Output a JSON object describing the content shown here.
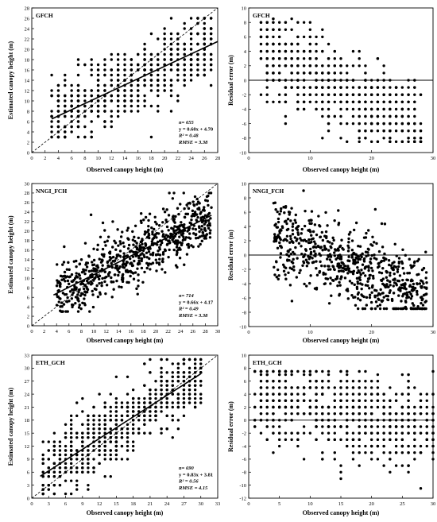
{
  "chart_data": [
    {
      "type": "scatter",
      "title": "GFCH",
      "xlabel": "Observed canopy height (m)",
      "ylabel": "Estimated canopy height (m)",
      "xlim": [
        0,
        28
      ],
      "ylim": [
        0,
        28
      ],
      "xticks": [
        "0",
        "2",
        "4",
        "6",
        "8",
        "10",
        "12",
        "14",
        "16",
        "18",
        "20",
        "22",
        "24",
        "26",
        "28"
      ],
      "yticks": [
        "0",
        "2",
        "4",
        "6",
        "8",
        "10",
        "12",
        "14",
        "16",
        "18",
        "20",
        "22",
        "24",
        "26",
        "28"
      ],
      "fit": {
        "slope": 0.6,
        "intercept": 4.7,
        "x_range": [
          3,
          28
        ]
      },
      "one_to_one": true,
      "stats": {
        "n": "n= 655",
        "eq": "y = 0.60x + 4.70",
        "r2": "R² = 0.48",
        "rmse": "RMSE = 3.38"
      },
      "gen": {
        "seed": 11,
        "count": 655,
        "xmin": 3,
        "xmax": 27.5,
        "ymin": 3,
        "ymax": 26,
        "sd": 3.3,
        "xstep": 1,
        "ystep": 1
      }
    },
    {
      "type": "scatter",
      "title": "GFCH",
      "xlabel": "Observed canopy height (m)",
      "ylabel": "Residual error (m)",
      "xlim": [
        0,
        30
      ],
      "ylim": [
        -10,
        10
      ],
      "xticks": [
        "0",
        "10",
        "20",
        "30"
      ],
      "yticks": [
        "-10",
        "-8",
        "-6",
        "-4",
        "-2",
        "0",
        "2",
        "4",
        "6",
        "8",
        "10"
      ],
      "zero_line": true,
      "gen": {
        "seed": 12,
        "count": 655,
        "xmin": 2,
        "xmax": 28,
        "ymin": -8.5,
        "ymax": 8.5,
        "residual": true,
        "slope": 0.6,
        "intercept": 4.7,
        "sd": 3.3,
        "xstep": 1,
        "ystep": 1
      }
    },
    {
      "type": "scatter",
      "title": "NNGI_FCH",
      "xlabel": "Observed canopy height (m)",
      "ylabel": "Estimated canopy height (m)",
      "xlim": [
        0,
        30
      ],
      "ylim": [
        0,
        30
      ],
      "xticks": [
        "0",
        "2",
        "4",
        "6",
        "8",
        "10",
        "12",
        "14",
        "16",
        "18",
        "20",
        "22",
        "24",
        "26",
        "28",
        "30"
      ],
      "yticks": [
        "0",
        "2",
        "4",
        "6",
        "8",
        "10",
        "12",
        "14",
        "16",
        "18",
        "20",
        "22",
        "24",
        "26",
        "28",
        "30"
      ],
      "fit": {
        "slope": 0.66,
        "intercept": 4.17,
        "x_range": [
          3.5,
          29
        ]
      },
      "one_to_one": true,
      "stats": {
        "n": "n= 714",
        "eq": "y = 0.66x + 4.17",
        "r2": "R² = 0.49",
        "rmse": "RMSE = 3.38"
      },
      "gen": {
        "seed": 21,
        "count": 714,
        "xmin": 4,
        "xmax": 29,
        "ymin": 3,
        "ymax": 28,
        "sd": 3.1,
        "xstep": 0,
        "ystep": 0
      }
    },
    {
      "type": "scatter",
      "title": "NNGI_FCH",
      "xlabel": "Observed canopy height (m)",
      "ylabel": "Residual error (m)",
      "xlim": [
        0,
        30
      ],
      "ylim": [
        -10,
        10
      ],
      "xticks": [
        "0",
        "10",
        "20",
        "30"
      ],
      "yticks": [
        "-10",
        "-8",
        "-6",
        "-4",
        "-2",
        "0",
        "2",
        "4",
        "6",
        "8",
        "10"
      ],
      "zero_line": true,
      "gen": {
        "seed": 22,
        "count": 714,
        "xmin": 4,
        "xmax": 29,
        "ymin": -7.5,
        "ymax": 9,
        "residual": true,
        "slope": 0.66,
        "intercept": 4.17,
        "sd": 3.1,
        "xstep": 0,
        "ystep": 0
      }
    },
    {
      "type": "scatter",
      "title": "ETH_GCH",
      "xlabel": "Observed canopy height (m)",
      "ylabel": "Estimated canopy height (m)",
      "xlim": [
        0,
        33
      ],
      "ylim": [
        0,
        33
      ],
      "xticks": [
        "0",
        "3",
        "6",
        "9",
        "12",
        "15",
        "18",
        "21",
        "24",
        "27",
        "30",
        "33"
      ],
      "yticks": [
        "0",
        "3",
        "6",
        "9",
        "12",
        "15",
        "18",
        "21",
        "24",
        "27",
        "30",
        "33"
      ],
      "fit": {
        "slope": 0.83,
        "intercept": 3.81,
        "x_range": [
          1.5,
          30
        ]
      },
      "one_to_one": true,
      "stats": {
        "n": "n= 690",
        "eq": "y = 0.83x + 3.81",
        "r2": "R² = 0.56",
        "rmse": "RMSE = 4.15"
      },
      "gen": {
        "seed": 31,
        "count": 690,
        "xmin": 1.5,
        "xmax": 30,
        "ymin": 1,
        "ymax": 32,
        "sd": 4.1,
        "xstep": 1,
        "ystep": 1
      }
    },
    {
      "type": "scatter",
      "title": "ETH_GCH",
      "xlabel": "Observed canopy height (m)",
      "ylabel": "Residual error (m)",
      "xlim": [
        0,
        30
      ],
      "ylim": [
        -12,
        10
      ],
      "xticks": [
        "0",
        "5",
        "10",
        "15",
        "20",
        "25",
        "30"
      ],
      "yticks": [
        "-12",
        "-10",
        "-8",
        "-6",
        "-4",
        "-2",
        "0",
        "2",
        "4",
        "6",
        "8",
        "10"
      ],
      "zero_line": true,
      "gen": {
        "seed": 32,
        "count": 690,
        "xmin": 1,
        "xmax": 30,
        "ymin": -10.5,
        "ymax": 7.5,
        "residual": true,
        "slope": 0.83,
        "intercept": 3.81,
        "sd": 4.1,
        "xstep": 1,
        "ystep": 1
      }
    }
  ]
}
